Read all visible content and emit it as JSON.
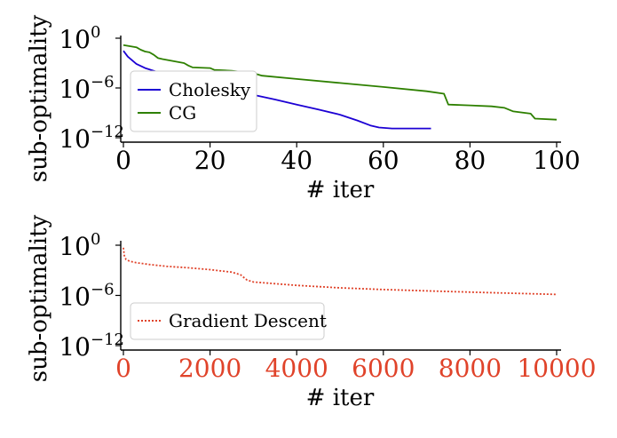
{
  "chart_data": [
    {
      "type": "line",
      "ylabel": "sub-optimality",
      "xlabel": "# iter",
      "yscale": "log",
      "ylim": [
        1e-12,
        1
      ],
      "xlim": [
        0,
        100
      ],
      "xticks": [
        "0",
        "20",
        "40",
        "60",
        "80",
        "100"
      ],
      "yticks": [
        {
          "base": "10",
          "exp": "0"
        },
        {
          "base": "10",
          "exp": "−6"
        },
        {
          "base": "10",
          "exp": "−12"
        }
      ],
      "legend_position": "lower-left",
      "grid": false,
      "series": [
        {
          "name": "Cholesky",
          "color": "#1c00d4",
          "line_style": "solid",
          "x": [
            0,
            1,
            3,
            5,
            8,
            12,
            16,
            20,
            25,
            30,
            35,
            40,
            45,
            50,
            54,
            57,
            59,
            62,
            66,
            71
          ],
          "y": [
            0.03,
            0.006,
            0.0008,
            0.00025,
            8e-05,
            2.5e-05,
            8e-06,
            2.5e-06,
            6e-07,
            1.5e-07,
            4e-08,
            1e-08,
            2.5e-09,
            6e-10,
            1.2e-10,
            3e-11,
            1.7e-11,
            1.3e-11,
            1.3e-11,
            1.3e-11
          ]
        },
        {
          "name": "CG",
          "color": "#2e8000",
          "line_style": "solid",
          "x": [
            0,
            3,
            4,
            5,
            6,
            7,
            8,
            9,
            14,
            15,
            16,
            20,
            21,
            25,
            30,
            32,
            40,
            50,
            60,
            70,
            74,
            75,
            80,
            85,
            88,
            90,
            94,
            95,
            100
          ],
          "y": [
            0.15,
            0.08,
            0.04,
            0.025,
            0.02,
            0.01,
            0.004,
            0.003,
            0.001,
            0.0005,
            0.0003,
            0.00025,
            0.00015,
            0.00012,
            6e-05,
            3e-05,
            1.2e-05,
            4e-06,
            1.3e-06,
            4e-07,
            2e-07,
            1e-08,
            8e-09,
            6e-09,
            4e-09,
            1.5e-09,
            8e-10,
            2e-10,
            1.5e-10
          ]
        }
      ]
    },
    {
      "type": "line",
      "ylabel": "sub-optimality",
      "xlabel": "# iter",
      "yscale": "log",
      "ylim": [
        1e-12,
        1
      ],
      "xlim": [
        0,
        10000
      ],
      "xtick_color": "#e0432a",
      "xticks": [
        "0",
        "2000",
        "4000",
        "6000",
        "8000",
        "10000"
      ],
      "yticks": [
        {
          "base": "10",
          "exp": "0"
        },
        {
          "base": "10",
          "exp": "−6"
        },
        {
          "base": "10",
          "exp": "−12"
        }
      ],
      "legend_position": "center-left",
      "grid": false,
      "series": [
        {
          "name": "Gradient Descent",
          "color": "#e0432a",
          "line_style": "dotted",
          "x": [
            0,
            20,
            60,
            150,
            300,
            600,
            1000,
            1500,
            2000,
            2500,
            2700,
            2850,
            3000,
            3500,
            4000,
            5000,
            6000,
            7000,
            8000,
            9000,
            10000
          ],
          "y": [
            0.5,
            0.06,
            0.02,
            0.012,
            0.008,
            0.005,
            0.003,
            0.002,
            0.0012,
            0.0006,
            0.0003,
            7e-05,
            4e-05,
            2.5e-05,
            1.6e-05,
            8e-06,
            5e-06,
            3.5e-06,
            2.5e-06,
            1.8e-06,
            1.3e-06
          ]
        }
      ]
    }
  ]
}
